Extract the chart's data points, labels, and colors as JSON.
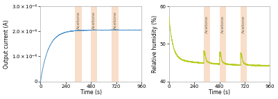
{
  "fig_width": 4.01,
  "fig_height": 1.43,
  "dpi": 100,
  "left_plot": {
    "xlim": [
      0,
      960
    ],
    "ylim": [
      0,
      0.0003
    ],
    "yticks": [
      0,
      0.0001,
      0.0002,
      0.0003
    ],
    "xticks": [
      0,
      240,
      480,
      720,
      960
    ],
    "xlabel": "Time (s)",
    "ylabel": "Output current (A)",
    "line_color": "#4a90c8",
    "tau": 75,
    "saturation": 0.000205
  },
  "right_plot": {
    "xlim": [
      0,
      960
    ],
    "ylim": [
      40,
      60
    ],
    "yticks": [
      40,
      50,
      60
    ],
    "xticks": [
      0,
      240,
      480,
      720,
      960
    ],
    "xlabel": "Time (s)",
    "ylabel": "Relative humidity (%)",
    "line_color": "#b8cc20",
    "start_humidity": 57.0,
    "fast_drop_to": 46.0,
    "slow_end": 44.0,
    "tau_fast": 35,
    "tau_slow": 400
  },
  "acetone_bands": [
    {
      "x_start": 330,
      "x_end": 390
    },
    {
      "x_start": 480,
      "x_end": 540
    },
    {
      "x_start": 680,
      "x_end": 740
    }
  ],
  "acetone_label": "Acetone",
  "band_color": "#f5c8a8",
  "band_alpha": 0.6,
  "background_color": "#ffffff",
  "fontsize_label": 5.5,
  "fontsize_tick": 5.0,
  "fontsize_acetone": 4.5,
  "spine_color": "#aaaaaa",
  "spine_lw": 0.5
}
